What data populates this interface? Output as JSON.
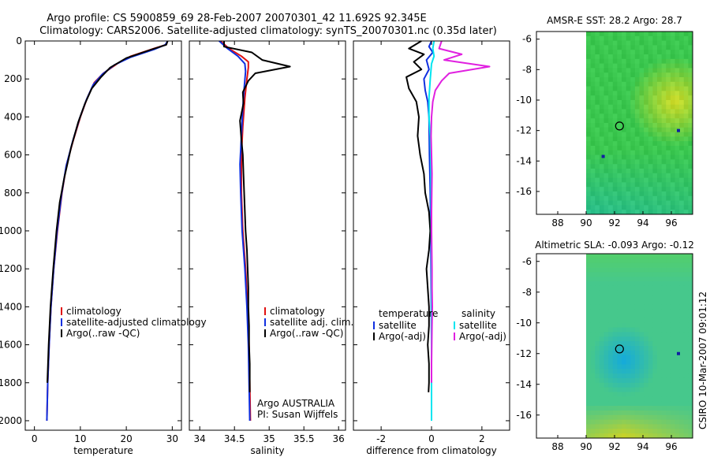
{
  "header": {
    "line1": "Argo profile: CS 5900859_69 28-Feb-2007 20070301_42 11.692S 92.345E",
    "line2": "Climatology: CARS2006. Satellite-adjusted climatology: synTS_20070301.nc (0.35d later)"
  },
  "footer": {
    "stamp": "CSIRO 10-Mar-2007 09:01:12"
  },
  "colors": {
    "climatology": "#e01010",
    "satellite": "#1030e0",
    "argo": "#000000",
    "satellite_salinity": "#00e5f0",
    "argo_adj_salinity": "#e020e0"
  },
  "chart_data": [
    {
      "id": "temperature",
      "type": "line",
      "xlabel": "temperature",
      "xlim": [
        -2,
        32
      ],
      "ylim": [
        0,
        2050
      ],
      "y_reversed": true,
      "xticks": [
        0,
        10,
        20,
        30
      ],
      "yticks": [
        0,
        200,
        400,
        600,
        800,
        1000,
        1200,
        1400,
        1600,
        1800,
        2000
      ],
      "legend": [
        "climatology",
        "satellite-adjusted climatology",
        "Argo(..raw -QC)"
      ],
      "legend_placement": "lower-center",
      "series": [
        {
          "name": "climatology",
          "color_key": "climatology",
          "points": [
            [
              29.0,
              0
            ],
            [
              28.6,
              20
            ],
            [
              26,
              40
            ],
            [
              21,
              80
            ],
            [
              18,
              120
            ],
            [
              15,
              170
            ],
            [
              13,
              220
            ],
            [
              11.5,
              300
            ],
            [
              10,
              400
            ],
            [
              8.5,
              520
            ],
            [
              7,
              650
            ],
            [
              6,
              800
            ],
            [
              5,
              1000
            ],
            [
              4.2,
              1200
            ],
            [
              3.6,
              1400
            ],
            [
              3.2,
              1600
            ],
            [
              2.9,
              1800
            ],
            [
              2.7,
              2000
            ]
          ]
        },
        {
          "name": "satellite-adjusted climatology",
          "color_key": "satellite",
          "points": [
            [
              29.0,
              0
            ],
            [
              28.5,
              20
            ],
            [
              26,
              45
            ],
            [
              21,
              85
            ],
            [
              17.5,
              125
            ],
            [
              14.8,
              175
            ],
            [
              12.8,
              230
            ],
            [
              11.3,
              310
            ],
            [
              9.8,
              410
            ],
            [
              8.3,
              530
            ],
            [
              6.9,
              660
            ],
            [
              5.9,
              810
            ],
            [
              4.9,
              1010
            ],
            [
              4.2,
              1200
            ],
            [
              3.6,
              1400
            ],
            [
              3.2,
              1600
            ],
            [
              2.9,
              1800
            ],
            [
              2.7,
              2000
            ]
          ]
        },
        {
          "name": "Argo(..raw -QC)",
          "color_key": "argo",
          "points": [
            [
              29.0,
              0
            ],
            [
              28.7,
              20
            ],
            [
              25.5,
              45
            ],
            [
              20,
              90
            ],
            [
              16.5,
              140
            ],
            [
              14.5,
              190
            ],
            [
              12.5,
              250
            ],
            [
              11,
              330
            ],
            [
              9.5,
              430
            ],
            [
              8,
              560
            ],
            [
              6.5,
              720
            ],
            [
              5.5,
              850
            ],
            [
              4.8,
              1000
            ],
            [
              4.1,
              1200
            ],
            [
              3.5,
              1400
            ],
            [
              3.1,
              1600
            ],
            [
              2.8,
              1800
            ]
          ]
        }
      ]
    },
    {
      "id": "salinity",
      "type": "line",
      "xlabel": "salinity",
      "xlim": [
        33.85,
        36.1
      ],
      "ylim": [
        0,
        2050
      ],
      "y_reversed": true,
      "xticks": [
        34,
        34.5,
        35,
        35.5,
        36
      ],
      "xtick_labels": [
        "34",
        "34.5",
        "35",
        "35.5",
        "36"
      ],
      "legend": [
        "climatology",
        "satellite adj. clim.",
        "Argo(..raw -QC)"
      ],
      "legend_placement": "lower-right",
      "annotation": [
        "Argo AUSTRALIA",
        "PI: Susan Wijffels"
      ],
      "series": [
        {
          "name": "climatology",
          "color_key": "climatology",
          "points": [
            [
              34.3,
              0
            ],
            [
              34.42,
              40
            ],
            [
              34.6,
              80
            ],
            [
              34.7,
              110
            ],
            [
              34.7,
              140
            ],
            [
              34.68,
              200
            ],
            [
              34.65,
              300
            ],
            [
              34.62,
              450
            ],
            [
              34.6,
              600
            ],
            [
              34.6,
              800
            ],
            [
              34.62,
              1000
            ],
            [
              34.66,
              1200
            ],
            [
              34.69,
              1400
            ],
            [
              34.71,
              1600
            ],
            [
              34.72,
              1800
            ],
            [
              34.73,
              2000
            ]
          ]
        },
        {
          "name": "satellite adj. clim.",
          "color_key": "satellite",
          "points": [
            [
              34.28,
              0
            ],
            [
              34.4,
              40
            ],
            [
              34.55,
              80
            ],
            [
              34.65,
              120
            ],
            [
              34.66,
              160
            ],
            [
              34.64,
              250
            ],
            [
              34.62,
              350
            ],
            [
              34.6,
              500
            ],
            [
              34.58,
              650
            ],
            [
              34.59,
              800
            ],
            [
              34.61,
              1000
            ],
            [
              34.65,
              1200
            ],
            [
              34.68,
              1400
            ],
            [
              34.7,
              1600
            ],
            [
              34.71,
              1800
            ],
            [
              34.72,
              2000
            ]
          ]
        },
        {
          "name": "Argo(..raw -QC)",
          "color_key": "argo",
          "points": [
            [
              34.35,
              0
            ],
            [
              34.35,
              30
            ],
            [
              34.75,
              60
            ],
            [
              34.9,
              100
            ],
            [
              35.3,
              135
            ],
            [
              34.8,
              170
            ],
            [
              34.7,
              210
            ],
            [
              34.62,
              270
            ],
            [
              34.63,
              330
            ],
            [
              34.58,
              420
            ],
            [
              34.6,
              520
            ],
            [
              34.62,
              600
            ],
            [
              34.63,
              700
            ],
            [
              34.64,
              800
            ],
            [
              34.65,
              900
            ],
            [
              34.66,
              1000
            ],
            [
              34.68,
              1100
            ],
            [
              34.69,
              1200
            ],
            [
              34.7,
              1300
            ],
            [
              34.7,
              1400
            ],
            [
              34.71,
              1500
            ],
            [
              34.71,
              1600
            ],
            [
              34.72,
              1700
            ],
            [
              34.72,
              1800
            ],
            [
              34.72,
              1850
            ]
          ]
        }
      ]
    },
    {
      "id": "difference",
      "type": "line",
      "xlabel": "difference from climatology",
      "xlim": [
        -3.1,
        3.1
      ],
      "ylim": [
        0,
        2050
      ],
      "y_reversed": true,
      "xticks": [
        -2,
        0,
        2
      ],
      "legend_left_title": "temperature",
      "legend_right_title": "salinity",
      "legend_left": [
        "satellite",
        "Argo(-adj)"
      ],
      "legend_right": [
        "satellite",
        "Argo(-adj)"
      ],
      "legend_placement": "lower",
      "series": [
        {
          "name": "temperature satellite",
          "color_key": "satellite",
          "points": [
            [
              0,
              0
            ],
            [
              -0.1,
              30
            ],
            [
              0.05,
              60
            ],
            [
              -0.2,
              100
            ],
            [
              -0.1,
              150
            ],
            [
              -0.3,
              200
            ],
            [
              -0.25,
              260
            ],
            [
              -0.15,
              320
            ],
            [
              -0.1,
              400
            ],
            [
              -0.08,
              600
            ],
            [
              -0.05,
              800
            ],
            [
              -0.03,
              1000
            ],
            [
              -0.02,
              1200
            ],
            [
              -0.01,
              1400
            ],
            [
              0,
              1600
            ],
            [
              0,
              1800
            ],
            [
              0,
              2000
            ]
          ]
        },
        {
          "name": "temperature Argo(-adj)",
          "color_key": "argo",
          "points": [
            [
              -0.4,
              0
            ],
            [
              -0.9,
              40
            ],
            [
              -0.3,
              70
            ],
            [
              -0.7,
              110
            ],
            [
              -0.4,
              150
            ],
            [
              -1.0,
              190
            ],
            [
              -0.9,
              250
            ],
            [
              -0.6,
              320
            ],
            [
              -0.5,
              400
            ],
            [
              -0.55,
              500
            ],
            [
              -0.45,
              600
            ],
            [
              -0.3,
              700
            ],
            [
              -0.25,
              800
            ],
            [
              -0.1,
              900
            ],
            [
              -0.05,
              1000
            ],
            [
              -0.1,
              1100
            ],
            [
              -0.2,
              1200
            ],
            [
              -0.15,
              1300
            ],
            [
              -0.1,
              1400
            ],
            [
              -0.1,
              1500
            ],
            [
              -0.15,
              1600
            ],
            [
              -0.1,
              1700
            ],
            [
              -0.1,
              1800
            ],
            [
              -0.12,
              1850
            ]
          ]
        },
        {
          "name": "salinity satellite",
          "color_key": "satellite_salinity",
          "points": [
            [
              0.1,
              0
            ],
            [
              0.05,
              40
            ],
            [
              0.1,
              80
            ],
            [
              0.0,
              120
            ],
            [
              -0.05,
              200
            ],
            [
              -0.1,
              300
            ],
            [
              -0.1,
              400
            ],
            [
              -0.05,
              500
            ],
            [
              -0.03,
              600
            ],
            [
              -0.02,
              800
            ],
            [
              -0.01,
              1000
            ],
            [
              0,
              1200
            ],
            [
              0,
              1400
            ],
            [
              0,
              1600
            ],
            [
              0,
              1800
            ],
            [
              0,
              2000
            ]
          ]
        },
        {
          "name": "salinity Argo(-adj)",
          "color_key": "argo_adj_salinity",
          "points": [
            [
              0.4,
              0
            ],
            [
              0.3,
              40
            ],
            [
              1.2,
              70
            ],
            [
              0.5,
              100
            ],
            [
              2.3,
              135
            ],
            [
              0.7,
              170
            ],
            [
              0.4,
              210
            ],
            [
              0.15,
              260
            ],
            [
              0.05,
              320
            ],
            [
              0.0,
              400
            ],
            [
              -0.02,
              500
            ],
            [
              0.0,
              600
            ],
            [
              0.02,
              700
            ],
            [
              0.01,
              800
            ],
            [
              0.0,
              900
            ],
            [
              0.0,
              1000
            ],
            [
              0.01,
              1100
            ],
            [
              0.02,
              1200
            ],
            [
              0.02,
              1300
            ],
            [
              0.03,
              1400
            ],
            [
              0.02,
              1500
            ],
            [
              0.01,
              1600
            ],
            [
              0.0,
              1700
            ],
            [
              0.0,
              1800
            ]
          ]
        }
      ]
    },
    {
      "id": "sst_map",
      "type": "heatmap",
      "title": "AMSR-E SST: 28.2 Argo: 28.7",
      "xlim": [
        86.5,
        97.5
      ],
      "ylim": [
        -17.5,
        -5.5
      ],
      "xticks": [
        88,
        90,
        92,
        94,
        96
      ],
      "yticks": [
        -16,
        -14,
        -12,
        -10,
        -8,
        -6
      ],
      "data_start_lon": 90,
      "float_marker": [
        92.35,
        -11.7
      ],
      "extra_markers": [
        [
          91.2,
          -13.7
        ],
        [
          96.5,
          -12.0
        ]
      ]
    },
    {
      "id": "sla_map",
      "type": "heatmap",
      "title": "Altimetric SLA: -0.093 Argo: -0.12",
      "xlim": [
        86.5,
        97.5
      ],
      "ylim": [
        -17.5,
        -5.5
      ],
      "xticks": [
        88,
        90,
        92,
        94,
        96
      ],
      "yticks": [
        -16,
        -14,
        -12,
        -10,
        -8,
        -6
      ],
      "data_start_lon": 90,
      "float_marker": [
        92.35,
        -11.7
      ],
      "extra_markers": [
        [
          96.5,
          -12.0
        ]
      ]
    }
  ]
}
